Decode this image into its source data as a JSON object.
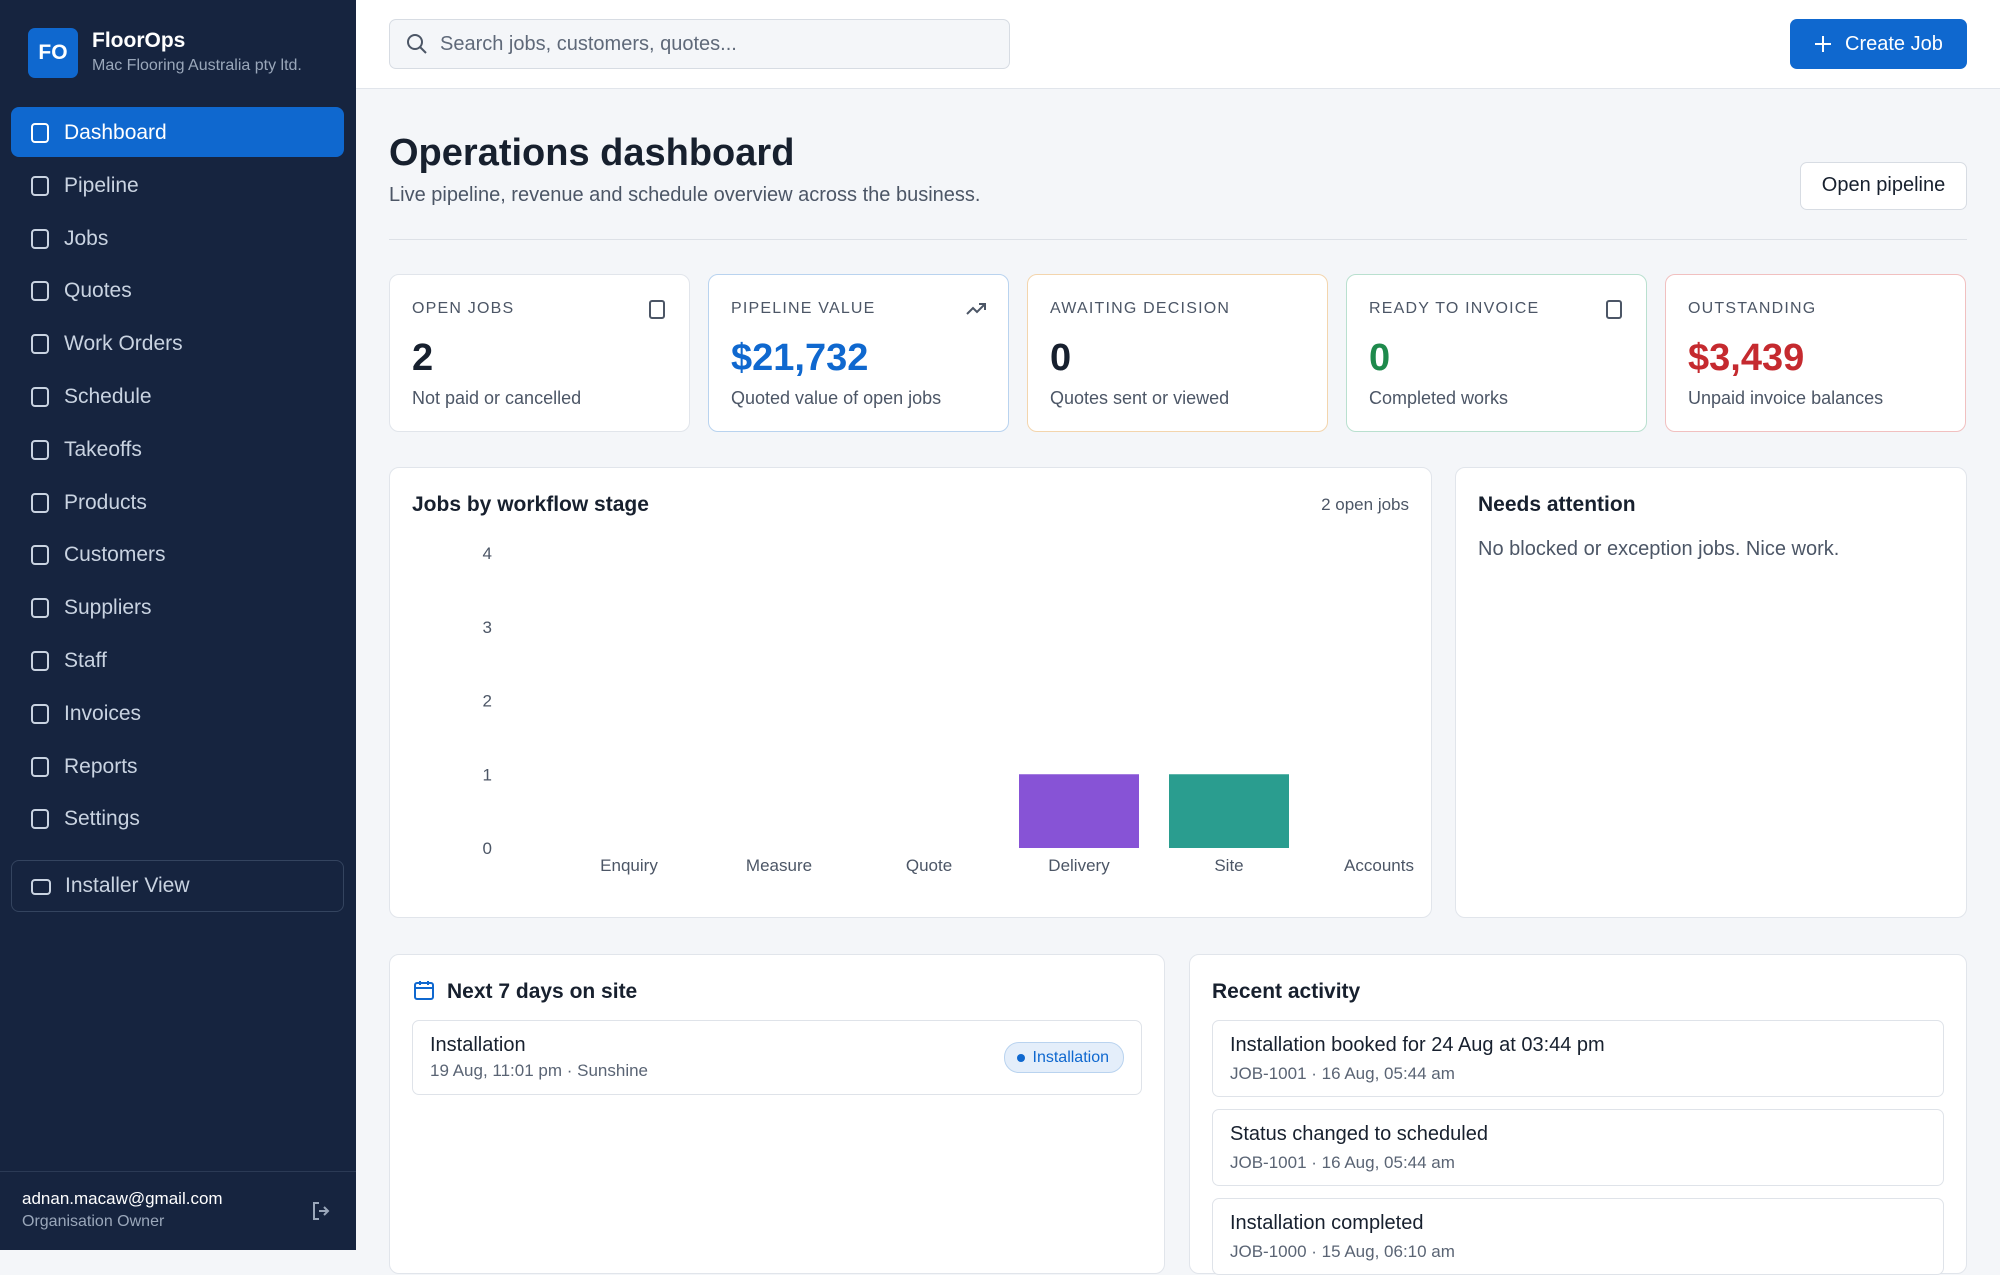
{
  "sidebar": {
    "logo": "FO",
    "brand": "FloorOps",
    "company": "Mac Flooring Australia pty ltd.",
    "nav": [
      "Dashboard",
      "Pipeline",
      "Jobs",
      "Quotes",
      "Work Orders",
      "Schedule",
      "Takeoffs",
      "Products",
      "Customers",
      "Suppliers",
      "Staff",
      "Invoices",
      "Reports",
      "Settings"
    ],
    "installer_view": "Installer View",
    "user_email": "adnan.macaw@gmail.com",
    "user_role": "Organisation Owner"
  },
  "header": {
    "search_placeholder": "Search jobs, customers, quotes...",
    "create_button": "Create Job"
  },
  "page": {
    "title": "Operations dashboard",
    "subtitle": "Live pipeline, revenue and schedule overview across the business.",
    "open_pipeline": "Open pipeline"
  },
  "kpis": [
    {
      "label": "OPEN JOBS",
      "value": "2",
      "note": "Not paid or cancelled"
    },
    {
      "label": "PIPELINE VALUE",
      "value": "$21,732",
      "note": "Quoted value of open jobs"
    },
    {
      "label": "AWAITING DECISION",
      "value": "0",
      "note": "Quotes sent or viewed"
    },
    {
      "label": "READY TO INVOICE",
      "value": "0",
      "note": "Completed works"
    },
    {
      "label": "OUTSTANDING",
      "value": "$3,439",
      "note": "Unpaid invoice balances"
    }
  ],
  "chart_data": {
    "type": "bar",
    "title": "Jobs by workflow stage",
    "annotation": "2 open jobs",
    "categories": [
      "Enquiry",
      "Measure",
      "Quote",
      "Delivery",
      "Site",
      "Accounts"
    ],
    "values": [
      0,
      0,
      0,
      1,
      1,
      0
    ],
    "colors": [
      null,
      null,
      null,
      "#8753d6",
      "#2a9d8f",
      null
    ],
    "ylim": [
      0,
      4
    ],
    "yticks": [
      0,
      1,
      2,
      3,
      4
    ]
  },
  "needs_attention": {
    "title": "Needs attention",
    "message": "No blocked or exception jobs. Nice work."
  },
  "schedule": {
    "title": "Next 7 days on site",
    "items": [
      {
        "title": "Installation",
        "detail": "19 Aug, 11:01 pm · Sunshine",
        "badge": "Installation"
      }
    ]
  },
  "activity": {
    "title": "Recent activity",
    "items": [
      {
        "title": "Installation booked for 24 Aug at 03:44 pm",
        "detail": "JOB-1001 · 16 Aug, 05:44 am"
      },
      {
        "title": "Status changed to scheduled",
        "detail": "JOB-1001 · 16 Aug, 05:44 am"
      },
      {
        "title": "Installation completed",
        "detail": "JOB-1000 · 15 Aug, 06:10 am"
      }
    ]
  }
}
